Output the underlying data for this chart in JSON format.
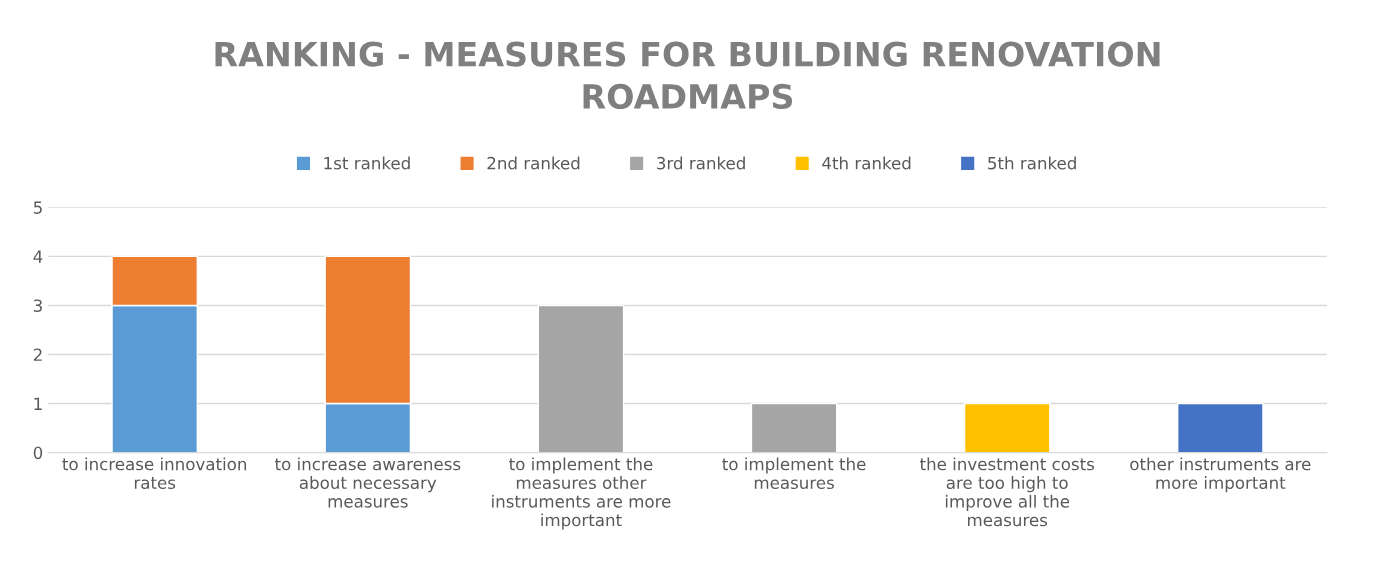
{
  "chart_data": {
    "type": "bar",
    "title": "RANKING - MEASURES FOR BUILDING RENOVATION ROADMAPS",
    "stacked": true,
    "categories": [
      "to increase innovation rates",
      "to increase awareness about necessary measures",
      "to implement the measures other instruments are more important",
      "to implement the measures",
      "the investment costs are too high to improve all the measures",
      "other instruments are more important"
    ],
    "series": [
      {
        "name": "1st ranked",
        "color": "#5b9bd5",
        "values": [
          3,
          1,
          null,
          null,
          null,
          null
        ]
      },
      {
        "name": "2nd ranked",
        "color": "#ed7d31",
        "values": [
          1,
          3,
          null,
          null,
          null,
          null
        ]
      },
      {
        "name": "3rd ranked",
        "color": "#a5a5a5",
        "values": [
          null,
          null,
          3,
          1,
          null,
          null
        ]
      },
      {
        "name": "4th ranked",
        "color": "#ffc000",
        "values": [
          null,
          null,
          null,
          null,
          1,
          null
        ]
      },
      {
        "name": "5th ranked",
        "color": "#4472c4",
        "values": [
          null,
          null,
          null,
          null,
          null,
          1
        ]
      }
    ],
    "ylim": [
      0,
      5
    ],
    "yticks": [
      0,
      1,
      2,
      3,
      4,
      5
    ],
    "grid": "y",
    "legend": "top"
  }
}
